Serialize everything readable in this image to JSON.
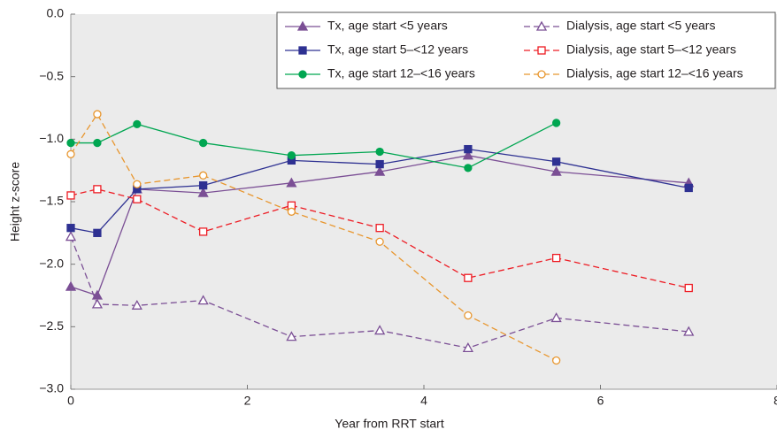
{
  "chart_data": {
    "type": "line",
    "xlabel": "Year from RRT start",
    "ylabel": "Height z-score",
    "x": [
      0,
      0.3,
      0.75,
      1.5,
      2.5,
      3.5,
      4.5,
      5.5,
      7
    ],
    "xlim": [
      0,
      8
    ],
    "xticks": [
      0,
      2,
      4,
      6,
      8
    ],
    "ylim": [
      -3,
      0
    ],
    "yticks": [
      {
        "value": -3,
        "label": "−3.0"
      },
      {
        "value": -2.5,
        "label": "−2.5"
      },
      {
        "value": -2,
        "label": "−2.0"
      },
      {
        "value": -1.5,
        "label": "−1.5"
      },
      {
        "value": -1,
        "label": "−1.0"
      },
      {
        "value": -0.5,
        "label": "−0.5"
      },
      {
        "value": 0,
        "label": "0.0"
      }
    ],
    "legend": "top-right",
    "series": [
      {
        "name": "Tx, age start <5 years",
        "color": "#7b4f95",
        "marker": "triangle",
        "filled": true,
        "dashed": false,
        "values": [
          -2.18,
          -2.25,
          -1.4,
          -1.43,
          -1.35,
          -1.26,
          -1.13,
          -1.26,
          -1.35
        ]
      },
      {
        "name": "Dialysis, age start <5 years",
        "color": "#7b4f95",
        "marker": "triangle",
        "filled": false,
        "dashed": true,
        "values": [
          -1.78,
          -2.32,
          -2.33,
          -2.29,
          -2.58,
          -2.53,
          -2.67,
          -2.43,
          -2.54
        ]
      },
      {
        "name": "Tx, age start 5–<12 years",
        "color": "#2e3192",
        "marker": "square",
        "filled": true,
        "dashed": false,
        "values": [
          -1.71,
          -1.75,
          -1.4,
          -1.37,
          -1.17,
          -1.2,
          -1.08,
          -1.18,
          -1.39
        ]
      },
      {
        "name": "Dialysis, age start 5–<12 years",
        "color": "#ed1c24",
        "marker": "square",
        "filled": false,
        "dashed": true,
        "values": [
          -1.45,
          -1.4,
          -1.48,
          -1.74,
          -1.53,
          -1.71,
          -2.11,
          -1.95,
          -2.19
        ]
      },
      {
        "name": "Tx, age start 12–<16 years",
        "color": "#00a651",
        "marker": "circle",
        "filled": true,
        "dashed": false,
        "values": [
          -1.03,
          -1.03,
          -0.88,
          -1.03,
          -1.13,
          -1.1,
          -1.23,
          -0.87,
          null
        ]
      },
      {
        "name": "Dialysis, age start 12–<16 years",
        "color": "#e8962e",
        "marker": "circle",
        "filled": false,
        "dashed": true,
        "values": [
          -1.12,
          -0.8,
          -1.36,
          -1.29,
          -1.58,
          -1.82,
          -2.41,
          -2.77,
          null
        ]
      }
    ]
  }
}
